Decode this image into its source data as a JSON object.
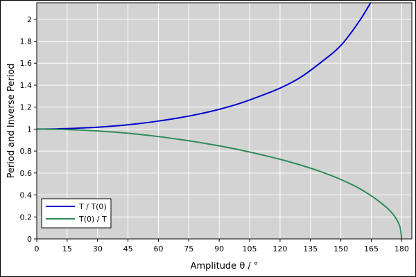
{
  "chart_data": {
    "type": "line",
    "title": "",
    "xlabel": "Amplitude θ / °",
    "ylabel": "Period and Inverse Period",
    "xlim": [
      0,
      185
    ],
    "ylim": [
      0,
      2.15
    ],
    "xticks": [
      0,
      15,
      30,
      45,
      60,
      75,
      90,
      105,
      120,
      135,
      150,
      165,
      180
    ],
    "yticks": [
      0,
      0.2,
      0.4,
      0.6,
      0.8,
      1,
      1.2,
      1.4,
      1.6,
      1.8,
      2
    ],
    "xtick_labels": [
      "0",
      "15",
      "30",
      "45",
      "60",
      "75",
      "90",
      "105",
      "120",
      "135",
      "150",
      "165",
      "180"
    ],
    "ytick_labels": [
      "0",
      "0.2",
      "0.4",
      "0.6",
      "0.8",
      "1",
      "1.2",
      "1.4",
      "1.6",
      "1.8",
      "2"
    ],
    "grid": true,
    "plot_background": "#d3d3d3",
    "legend_placement": "bottom-left",
    "series": [
      {
        "name": "T / T(0)",
        "color": "#0000cc",
        "x": [
          0,
          10,
          20,
          30,
          40,
          50,
          60,
          70,
          80,
          90,
          100,
          110,
          120,
          130,
          140,
          150,
          160,
          165
        ],
        "y": [
          1.0,
          1.002,
          1.008,
          1.017,
          1.031,
          1.049,
          1.073,
          1.102,
          1.137,
          1.18,
          1.233,
          1.299,
          1.373,
          1.47,
          1.605,
          1.762,
          2.008,
          2.16
        ]
      },
      {
        "name": "T(0) / T",
        "color": "#2e8b57",
        "x": [
          0,
          10,
          20,
          30,
          40,
          50,
          60,
          70,
          80,
          90,
          100,
          110,
          120,
          130,
          140,
          150,
          160,
          170,
          175,
          178,
          179.5,
          180
        ],
        "y": [
          1.0,
          0.998,
          0.992,
          0.983,
          0.97,
          0.953,
          0.932,
          0.907,
          0.879,
          0.847,
          0.811,
          0.77,
          0.725,
          0.673,
          0.613,
          0.541,
          0.45,
          0.325,
          0.24,
          0.16,
          0.08,
          0.0
        ]
      }
    ]
  }
}
